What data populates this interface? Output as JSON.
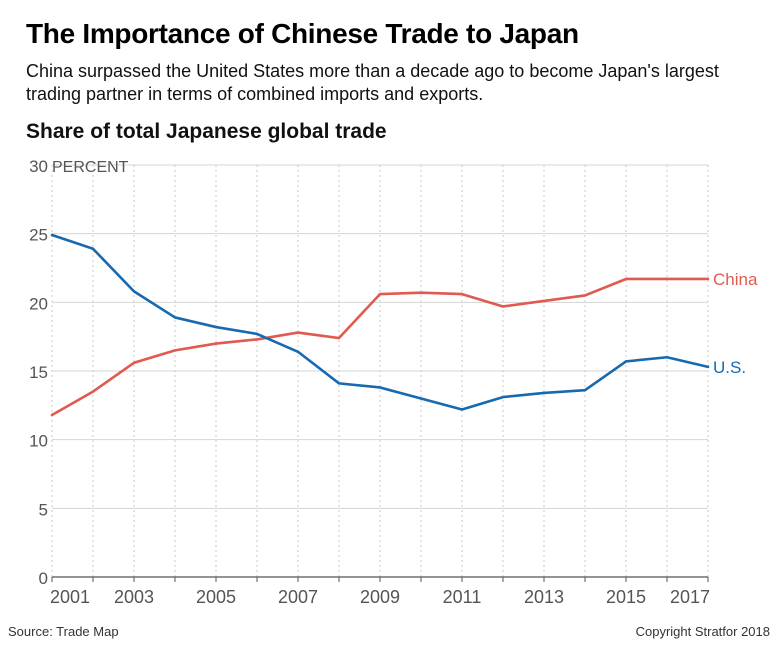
{
  "header": {
    "title": "The Importance of Chinese Trade to Japan",
    "subtitle": "China surpassed the United States more than a decade ago to become Japan's largest trading partner in terms of combined imports and exports.",
    "chart_heading": "Share of total Japanese global trade"
  },
  "footer": {
    "source": "Source: Trade Map",
    "copyright": "Copyright Stratfor 2018"
  },
  "chart_data": {
    "type": "line",
    "title": "Share of total Japanese global trade",
    "ylabel": "",
    "y_unit_label": "PERCENT",
    "ylim": [
      0,
      30
    ],
    "yticks": [
      0,
      5,
      10,
      15,
      20,
      25,
      30
    ],
    "x": [
      2001,
      2002,
      2003,
      2004,
      2005,
      2006,
      2007,
      2008,
      2009,
      2010,
      2011,
      2012,
      2013,
      2014,
      2015,
      2016,
      2017
    ],
    "xtick_labels": [
      "2001",
      "2003",
      "2005",
      "2007",
      "2009",
      "2011",
      "2013",
      "2015",
      "2017"
    ],
    "grid": true,
    "series": [
      {
        "name": "China",
        "color": "#e05a4f",
        "values": [
          11.8,
          13.5,
          15.6,
          16.5,
          17.0,
          17.3,
          17.8,
          17.4,
          20.6,
          20.7,
          20.6,
          19.7,
          20.1,
          20.5,
          21.7,
          21.7,
          21.7
        ]
      },
      {
        "name": "U.S.",
        "color": "#1769b0",
        "values": [
          24.9,
          23.9,
          20.8,
          18.9,
          18.2,
          17.7,
          16.4,
          14.1,
          13.8,
          13.0,
          12.2,
          13.1,
          13.4,
          13.6,
          15.7,
          16.0,
          15.3
        ]
      }
    ]
  }
}
